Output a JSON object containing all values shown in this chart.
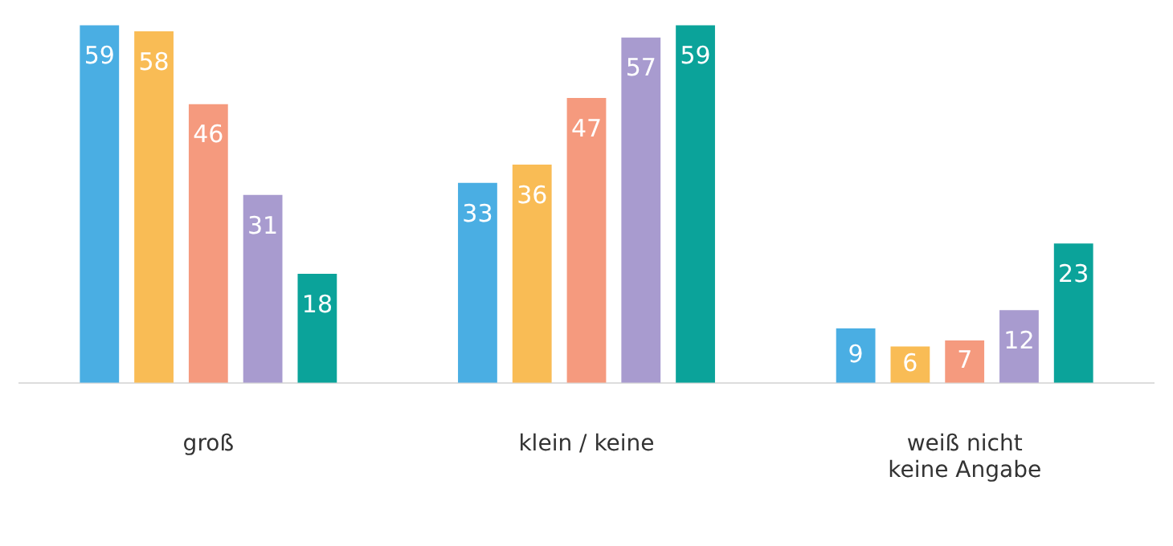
{
  "chart_data": {
    "type": "bar",
    "categories": [
      "groß",
      "klein / keine",
      "weiß nicht\nkeine Angabe"
    ],
    "series": [
      {
        "color": "#4aaee3",
        "values": [
          59,
          33,
          9
        ]
      },
      {
        "color": "#f9bc55",
        "values": [
          58,
          36,
          6
        ]
      },
      {
        "color": "#f59a7e",
        "values": [
          46,
          47,
          7
        ]
      },
      {
        "color": "#a89bcf",
        "values": [
          31,
          57,
          12
        ]
      },
      {
        "color": "#0ba39a",
        "values": [
          18,
          59,
          23
        ]
      }
    ],
    "data_labels": true,
    "grid": false,
    "legend": false
  }
}
